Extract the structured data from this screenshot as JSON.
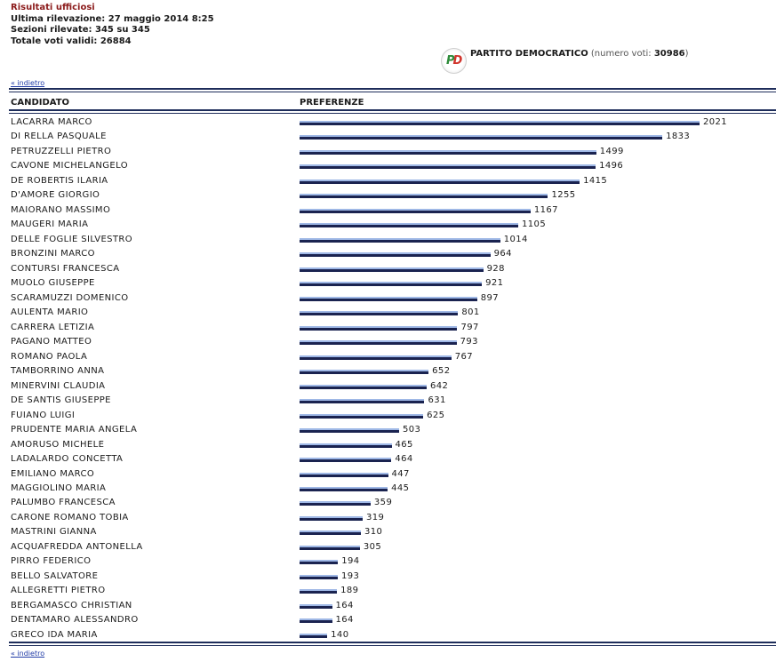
{
  "header": {
    "title": "Risultati ufficiosi",
    "line1": "Ultima rilevazione: 27 maggio 2014 8:25",
    "line2": "Sezioni rilevate: 345 su 345",
    "line3": "Totale voti validi: 26884"
  },
  "party": {
    "logo_text_p": "P",
    "logo_text_d": "D",
    "name": "PARTITO DEMOCRATICO",
    "votes_prefix": " (numero voti: ",
    "votes": "30986",
    "votes_suffix": ")"
  },
  "nav": {
    "back_label": "« indietro"
  },
  "table": {
    "col_candidate": "CANDIDATO",
    "col_preferences": "PREFERENZE"
  },
  "colors": {
    "bar_light": "#9fb8e6",
    "bar_dark": "#1a2350",
    "rule": "#1e2d5a"
  },
  "chart_data": {
    "type": "bar",
    "orientation": "horizontal",
    "xlim": [
      0,
      2021
    ],
    "categories": [
      "LACARRA MARCO",
      "DI RELLA PASQUALE",
      "PETRUZZELLI PIETRO",
      "CAVONE MICHELANGELO",
      "DE ROBERTIS ILARIA",
      "D'AMORE GIORGIO",
      "MAIORANO MASSIMO",
      "MAUGERI MARIA",
      "DELLE FOGLIE SILVESTRO",
      "BRONZINI MARCO",
      "CONTURSI FRANCESCA",
      "MUOLO GIUSEPPE",
      "SCARAMUZZI DOMENICO",
      "AULENTA MARIO",
      "CARRERA LETIZIA",
      "PAGANO MATTEO",
      "ROMANO PAOLA",
      "TAMBORRINO ANNA",
      "MINERVINI CLAUDIA",
      "DE SANTIS GIUSEPPE",
      "FUIANO LUIGI",
      "PRUDENTE MARIA ANGELA",
      "AMORUSO MICHELE",
      "LADALARDO CONCETTA",
      "EMILIANO MARCO",
      "MAGGIOLINO MARIA",
      "PALUMBO FRANCESCA",
      "CARONE ROMANO TOBIA",
      "MASTRINI GIANNA",
      "ACQUAFREDDA ANTONELLA",
      "PIRRO FEDERICO",
      "BELLO SALVATORE",
      "ALLEGRETTI PIETRO",
      "BERGAMASCO CHRISTIAN",
      "DENTAMARO ALESSANDRO",
      "GRECO IDA MARIA"
    ],
    "values": [
      2021,
      1833,
      1499,
      1496,
      1415,
      1255,
      1167,
      1105,
      1014,
      964,
      928,
      921,
      897,
      801,
      797,
      793,
      767,
      652,
      642,
      631,
      625,
      503,
      465,
      464,
      447,
      445,
      359,
      319,
      310,
      305,
      194,
      193,
      189,
      164,
      164,
      140
    ]
  }
}
